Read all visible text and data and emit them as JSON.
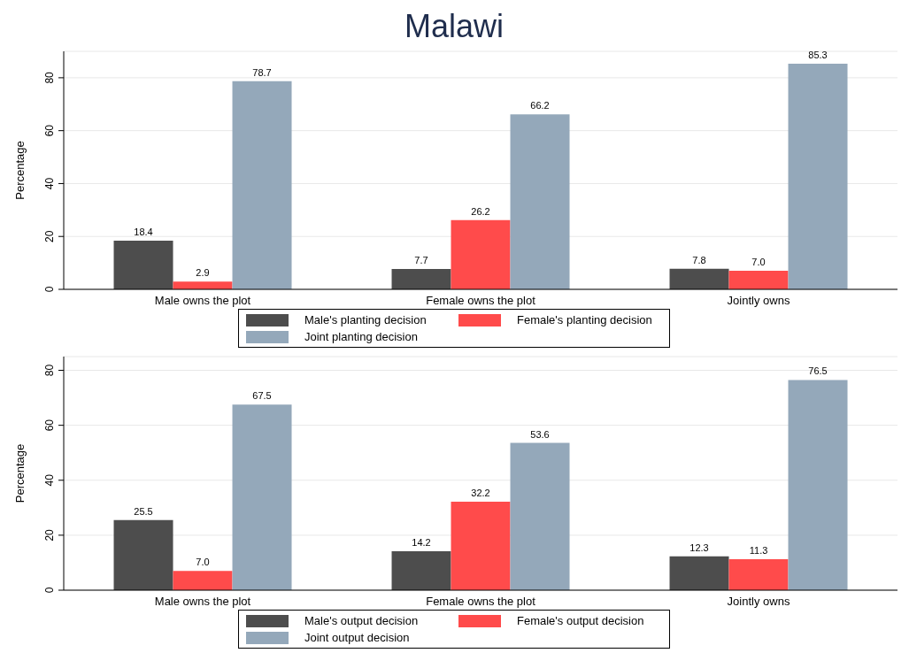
{
  "chart_data": [
    {
      "type": "bar",
      "title": "Malawi",
      "ylabel": "Percentage",
      "categories": [
        "Male owns the plot",
        "Female owns the plot",
        "Jointly owns"
      ],
      "series": [
        {
          "name": "Male's planting decision",
          "color": "#4d4d4d",
          "values": [
            18.4,
            7.7,
            7.8
          ],
          "value_labels": [
            "18.4",
            "7.7",
            "7.8"
          ]
        },
        {
          "name": "Female's planting decision",
          "color": "#ff4b4b",
          "values": [
            2.9,
            26.2,
            7.0
          ],
          "value_labels": [
            "2.9",
            "26.2",
            "7.0"
          ]
        },
        {
          "name": "Joint planting decision",
          "color": "#94a8ba",
          "values": [
            78.7,
            66.2,
            85.3
          ],
          "value_labels": [
            "78.7",
            "66.2",
            "85.3"
          ]
        }
      ],
      "ylim": [
        0,
        90
      ],
      "yticks": [
        0,
        20,
        40,
        60,
        80
      ],
      "grid": "y",
      "legend": "bottom"
    },
    {
      "type": "bar",
      "ylabel": "Percentage",
      "categories": [
        "Male owns the plot",
        "Female owns the plot",
        "Jointly owns"
      ],
      "series": [
        {
          "name": "Male's output decision",
          "color": "#4d4d4d",
          "values": [
            25.5,
            14.2,
            12.3
          ],
          "value_labels": [
            "25.5",
            "14.2",
            "12.3"
          ]
        },
        {
          "name": "Female's output decision",
          "color": "#ff4b4b",
          "values": [
            7.0,
            32.2,
            11.3
          ],
          "value_labels": [
            "7.0",
            "32.2",
            "11.3"
          ]
        },
        {
          "name": "Joint output decision",
          "color": "#94a8ba",
          "values": [
            67.5,
            53.6,
            76.5
          ],
          "value_labels": [
            "67.5",
            "53.6",
            "76.5"
          ]
        }
      ],
      "ylim": [
        0,
        85
      ],
      "yticks": [
        0,
        20,
        40,
        60,
        80
      ],
      "grid": "y",
      "legend": "bottom"
    }
  ]
}
